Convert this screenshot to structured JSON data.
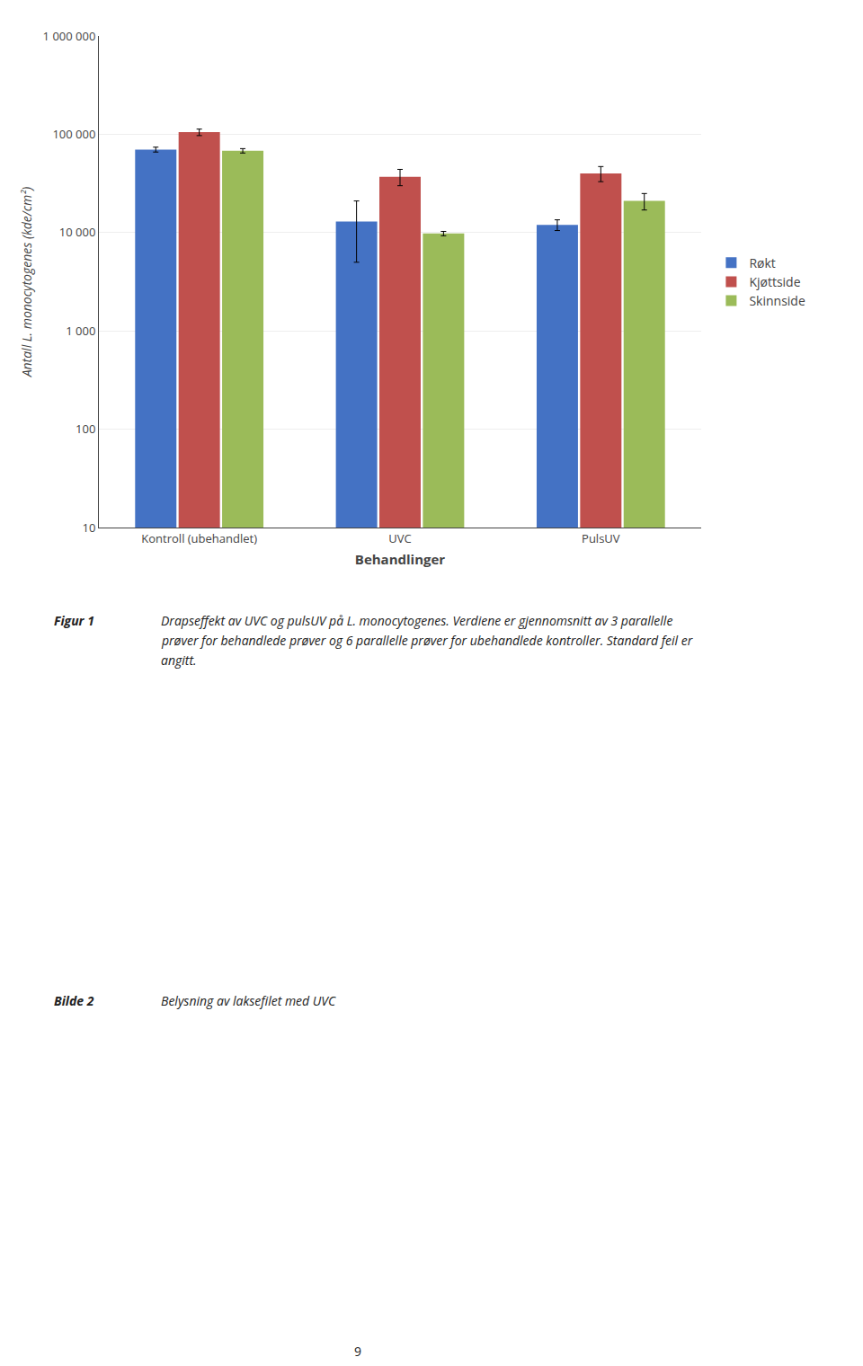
{
  "chart_data": {
    "type": "bar",
    "categories": [
      "Kontroll (ubehandlet)",
      "UVC",
      "PulsUV"
    ],
    "series": [
      {
        "name": "Røkt",
        "color": "#4472C4",
        "values": [
          70000,
          13000,
          12000
        ],
        "errors": [
          4000,
          8000,
          1500
        ]
      },
      {
        "name": "Kjøttside",
        "color": "#C0504D",
        "values": [
          105000,
          37000,
          40000
        ],
        "errors": [
          8000,
          7000,
          7000
        ]
      },
      {
        "name": "Skinnside",
        "color": "#9BBB59",
        "values": [
          68000,
          9800,
          21000
        ],
        "errors": [
          3500,
          500,
          4000
        ]
      }
    ],
    "xlabel": "Behandlinger",
    "ylabel": "Antall L. monocytogenes (kde/cm²)",
    "log": "y",
    "ylim": [
      10,
      1000000
    ],
    "yticks": [
      10,
      100,
      {
        "value": 1000,
        "label": "1 000"
      },
      {
        "value": 10000,
        "label": "10 000"
      },
      {
        "value": 100000,
        "label": "100 000"
      },
      {
        "value": 1000000,
        "label": "1 000 000"
      }
    ],
    "grid": true,
    "legend": "right",
    "annotations": [
      "Figur 1",
      "Drapseffekt av UVC og pulsUV på L. monocytogenes. Verdiene er gjennomsnitt av 3 parallelle",
      "prøver for behandlede prøver og 6 parallelle prøver for ubehandlede kontroller. Standard feil er",
      "angitt.",
      "Bilde 2",
      "Belysning av laksefilet med UVC",
      "9"
    ]
  }
}
